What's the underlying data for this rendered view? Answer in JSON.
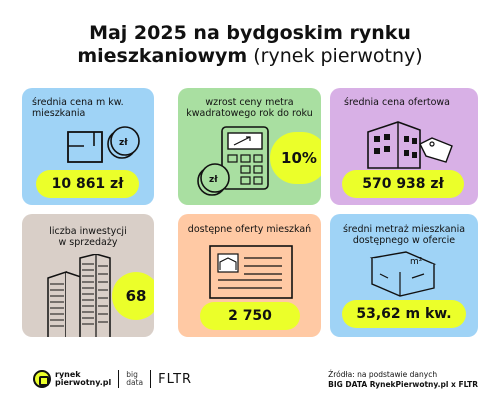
{
  "title": {
    "line1": "Maj 2025 na bydgoskim rynku",
    "line2_bold": "mieszkaniowym",
    "line2_rest": " (rynek pierwotny)"
  },
  "cards": [
    {
      "label_1": "średnia cena m kw.",
      "label_2": "mieszkania",
      "value": "10 861 zł",
      "icon": "floorplan-coin-icon",
      "coin_label": "zł"
    },
    {
      "label_1": "wzrost ceny metra",
      "label_2": "kwadratowego rok do roku",
      "value": "10%",
      "icon": "calculator-coin-icon",
      "coin_label": "zł"
    },
    {
      "label_1": "średnia cena ofertowa",
      "label_2": "",
      "value": "570 938 zł",
      "icon": "building-price-tag-icon"
    },
    {
      "label_1": "liczba inwestycji",
      "label_2": "w sprzedaży",
      "value": "68",
      "icon": "skyscrapers-icon"
    },
    {
      "label_1": "dostępne oferty mieszkań",
      "label_2": "",
      "value": "2 750",
      "icon": "listing-document-icon"
    },
    {
      "label_1": "średni metraż mieszkania",
      "label_2": "dostępnego w ofercie",
      "value": "53,62 m kw.",
      "icon": "floorplan-m2-icon",
      "m2_label": "m²"
    }
  ],
  "colors": {
    "accent": "#ebff2a",
    "blue": "#9fd3f6",
    "green": "#a9dfa1",
    "purple": "#d8b0e6",
    "beige": "#d9cfc8",
    "peach": "#ffc9a4"
  },
  "footer": {
    "logo_line1": "rynek",
    "logo_line2": "pierwotny.pl",
    "bigdata_line1": "big",
    "bigdata_line2": "data",
    "fltr": "FLTR",
    "source_line1": "Źródła: na podstawie danych",
    "source_line2": "BIG DATA RynekPierwotny.pl x FLTR"
  }
}
